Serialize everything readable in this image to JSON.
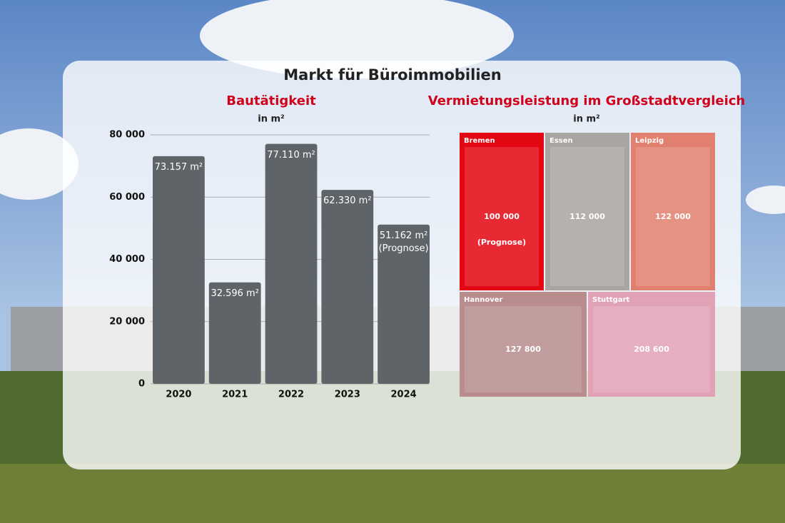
{
  "title": "Markt für Büroimmobilien",
  "chart_data": [
    {
      "type": "bar",
      "title": "Bautätigkeit",
      "subtitle": "in m²",
      "categories": [
        "2020",
        "2021",
        "2022",
        "2023",
        "2024"
      ],
      "values": [
        73157,
        32596,
        77110,
        62330,
        51162
      ],
      "value_labels": [
        "73.157 m²",
        "32.596 m²",
        "77.110 m²",
        "62.330 m²",
        "51.162 m²\n(Prognose)"
      ],
      "color": "#5f6468",
      "ylim": [
        0,
        80000
      ],
      "yticks": [
        0,
        {
          "value": 20000,
          "label": "20 000"
        },
        {
          "value": 40000,
          "label": "40 000"
        },
        {
          "value": 60000,
          "label": "60 000"
        },
        {
          "value": 80000,
          "label": "80 000"
        }
      ],
      "grid": true
    },
    {
      "type": "treemap",
      "title": "Vermietungsleistung im Großstadtvergleich",
      "subtitle": "in m²",
      "categories": [
        "Bremen",
        "Essen",
        "Leipzig",
        "Hannover",
        "Stuttgart"
      ],
      "values": [
        100000,
        112000,
        122000,
        127800,
        208600
      ],
      "value_labels": [
        "100 000\n\n(Prognose)",
        "112 000",
        "122 000",
        "127 800",
        "208 600"
      ],
      "colors": [
        "#e30613",
        "#a9a5a2",
        "#e2806f",
        "#b98d8e",
        "#e2a2b6"
      ]
    }
  ]
}
